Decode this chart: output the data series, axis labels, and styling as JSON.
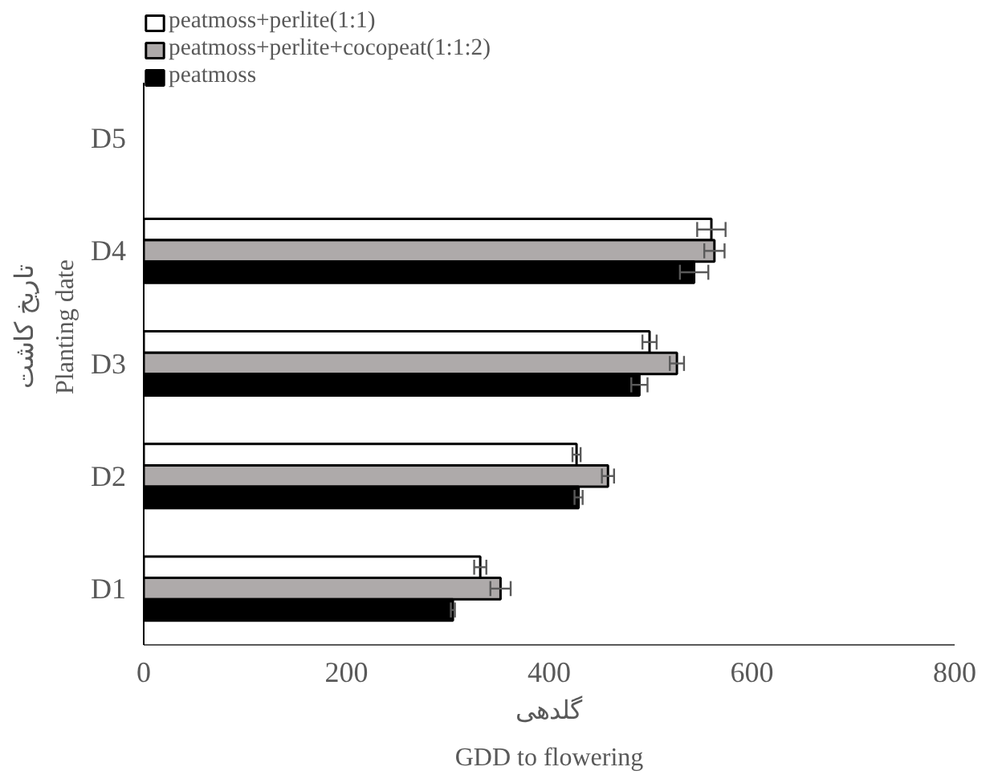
{
  "chart_data": {
    "type": "bar",
    "orientation": "horizontal",
    "categories": [
      "D5",
      "D4",
      "D3",
      "D2",
      "D1"
    ],
    "xlabel": "گلدهی\nGDD to flowering",
    "ylabel": "Planting date\nتاریخ کاشت",
    "series": [
      {
        "name": "peatmoss+perlite(1:1)",
        "color": "#ffffff",
        "values": [
          null,
          560,
          499,
          427,
          332
        ],
        "errors": [
          null,
          14,
          7,
          4,
          6
        ]
      },
      {
        "name": "peatmoss+perlite+cocopeat(1:1:2)",
        "color": "#aeaaaa",
        "values": [
          null,
          563,
          526,
          458,
          352
        ],
        "errors": [
          null,
          10,
          7,
          6,
          10
        ]
      },
      {
        "name": "peatmoss",
        "color": "#000000",
        "values": [
          null,
          543,
          489,
          429,
          305
        ],
        "errors": [
          null,
          14,
          8,
          4,
          2
        ]
      }
    ],
    "xlim": [
      0,
      800
    ],
    "xticks": [
      0,
      200,
      400,
      600,
      800
    ],
    "grid": false,
    "legend": "top"
  }
}
